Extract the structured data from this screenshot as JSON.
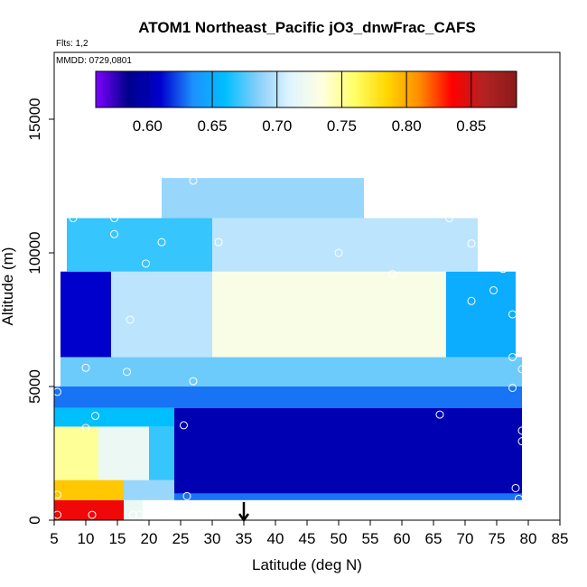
{
  "chart_data": {
    "type": "heatmap",
    "title": "ATOM1 Northeast_Pacific jO3_dnwFrac_CAFS",
    "flights_label": "Flts: 1,2",
    "dates_label": "MMDD: 0729,0801",
    "xlabel": "Latitude (deg N)",
    "ylabel": "Altitude (m)",
    "xlim": [
      5,
      85
    ],
    "ylim": [
      0,
      17500
    ],
    "xticks": [
      "5",
      "10",
      "15",
      "20",
      "25",
      "30",
      "35",
      "40",
      "45",
      "50",
      "55",
      "60",
      "65",
      "70",
      "75",
      "80",
      "85"
    ],
    "yticks": [
      "0",
      "5000",
      "10000",
      "15000"
    ],
    "colorbar": {
      "range": [
        0.56,
        0.885
      ],
      "ticks": [
        "0.60",
        "0.65",
        "0.70",
        "0.75",
        "0.80",
        "0.85"
      ],
      "colors": [
        "#7f00ff",
        "#00008b",
        "#0000cd",
        "#1e90ff",
        "#00bfff",
        "#87cefa",
        "#e0f4ff",
        "#ffffe0",
        "#ffff66",
        "#ffd700",
        "#ff8c00",
        "#ff0000",
        "#b22222",
        "#8b1a1a"
      ]
    },
    "marker_latitude": 35,
    "regions": [
      {
        "x": [
          5,
          16
        ],
        "y": [
          0,
          750
        ],
        "value": 0.84
      },
      {
        "x": [
          16,
          19
        ],
        "y": [
          0,
          750
        ],
        "value": 0.72
      },
      {
        "x": [
          5,
          16
        ],
        "y": [
          750,
          1500
        ],
        "value": 0.79
      },
      {
        "x": [
          16,
          24
        ],
        "y": [
          750,
          1500
        ],
        "value": 0.69
      },
      {
        "x": [
          24,
          79
        ],
        "y": [
          750,
          1000
        ],
        "value": 0.63
      },
      {
        "x": [
          5,
          12
        ],
        "y": [
          1500,
          3500
        ],
        "value": 0.75
      },
      {
        "x": [
          12,
          20
        ],
        "y": [
          1500,
          3500
        ],
        "value": 0.72
      },
      {
        "x": [
          20,
          24
        ],
        "y": [
          1500,
          3500
        ],
        "value": 0.67
      },
      {
        "x": [
          24,
          79
        ],
        "y": [
          1000,
          4200
        ],
        "value": 0.6
      },
      {
        "x": [
          5,
          24
        ],
        "y": [
          3500,
          4200
        ],
        "value": 0.66
      },
      {
        "x": [
          5,
          79
        ],
        "y": [
          4200,
          5000
        ],
        "value": 0.63
      },
      {
        "x": [
          6,
          79
        ],
        "y": [
          5000,
          6100
        ],
        "value": 0.68
      },
      {
        "x": [
          6,
          14
        ],
        "y": [
          6100,
          9300
        ],
        "value": 0.61
      },
      {
        "x": [
          14,
          30
        ],
        "y": [
          6100,
          9300
        ],
        "value": 0.7
      },
      {
        "x": [
          30,
          67
        ],
        "y": [
          6100,
          9300
        ],
        "value": 0.73
      },
      {
        "x": [
          67,
          78
        ],
        "y": [
          6100,
          9300
        ],
        "value": 0.65
      },
      {
        "x": [
          7,
          30
        ],
        "y": [
          9300,
          11300
        ],
        "value": 0.67
      },
      {
        "x": [
          30,
          72
        ],
        "y": [
          9300,
          11300
        ],
        "value": 0.7
      },
      {
        "x": [
          22,
          54
        ],
        "y": [
          11300,
          12800
        ],
        "value": 0.69
      }
    ],
    "points": [
      {
        "x": 5.5,
        "y": 200
      },
      {
        "x": 11,
        "y": 200
      },
      {
        "x": 17.5,
        "y": 200
      },
      {
        "x": 18.5,
        "y": 200
      },
      {
        "x": 5.5,
        "y": 950
      },
      {
        "x": 26,
        "y": 900
      },
      {
        "x": 78.5,
        "y": 800
      },
      {
        "x": 78,
        "y": 1200
      },
      {
        "x": 10,
        "y": 3450
      },
      {
        "x": 11.5,
        "y": 3900
      },
      {
        "x": 25.5,
        "y": 3550
      },
      {
        "x": 79,
        "y": 2950
      },
      {
        "x": 79,
        "y": 3350
      },
      {
        "x": 66,
        "y": 3950
      },
      {
        "x": 5.5,
        "y": 4800
      },
      {
        "x": 27,
        "y": 5200
      },
      {
        "x": 77.5,
        "y": 4950
      },
      {
        "x": 10,
        "y": 5700
      },
      {
        "x": 16.5,
        "y": 5550
      },
      {
        "x": 77.5,
        "y": 6100
      },
      {
        "x": 79,
        "y": 5650
      },
      {
        "x": 17,
        "y": 7500
      },
      {
        "x": 77.5,
        "y": 7700
      },
      {
        "x": 71,
        "y": 8200
      },
      {
        "x": 74.5,
        "y": 8600
      },
      {
        "x": 76,
        "y": 9400
      },
      {
        "x": 58.5,
        "y": 9200
      },
      {
        "x": 19.5,
        "y": 9600
      },
      {
        "x": 77,
        "y": 9700
      },
      {
        "x": 73,
        "y": 10000
      },
      {
        "x": 50,
        "y": 10000
      },
      {
        "x": 22,
        "y": 10400
      },
      {
        "x": 31,
        "y": 10400
      },
      {
        "x": 71,
        "y": 10350
      },
      {
        "x": 8,
        "y": 11300
      },
      {
        "x": 14.5,
        "y": 11300
      },
      {
        "x": 14.5,
        "y": 10700
      },
      {
        "x": 67.5,
        "y": 11300
      },
      {
        "x": 27,
        "y": 12700
      }
    ]
  }
}
